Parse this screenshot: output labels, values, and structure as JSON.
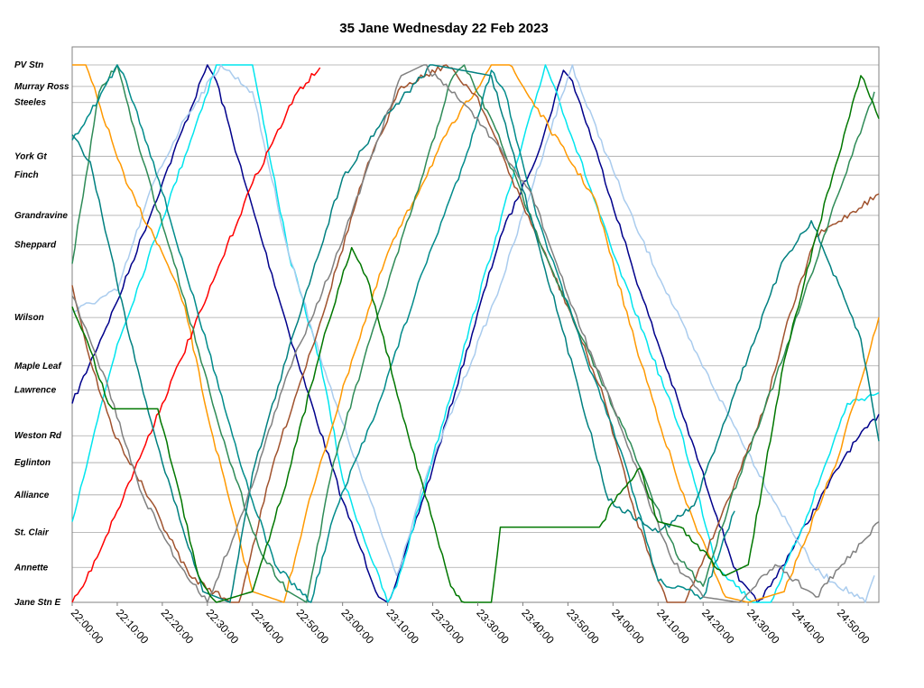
{
  "chart_data": {
    "type": "line",
    "title": "35 Jane Wednesday 22 Feb 2023",
    "x_ticks": [
      "22:00:00",
      "22:10:00",
      "22:20:00",
      "22:30:00",
      "22:40:00",
      "22:50:00",
      "23:00:00",
      "23:10:00",
      "23:20:00",
      "23:30:00",
      "23:40:00",
      "23:50:00",
      "24:00:00",
      "24:10:00",
      "24:20:00",
      "24:30:00",
      "24:40:00",
      "24:50:00"
    ],
    "xlim_minutes": [
      0,
      179
    ],
    "stops": [
      {
        "name": "PV Stn",
        "pos": 0
      },
      {
        "name": "Murray Ross",
        "pos": 0.4
      },
      {
        "name": "Steeles",
        "pos": 0.7
      },
      {
        "name": "York Gt",
        "pos": 1.7
      },
      {
        "name": "Finch",
        "pos": 2.05
      },
      {
        "name": "Grandravine",
        "pos": 2.8
      },
      {
        "name": "Sheppard",
        "pos": 3.35
      },
      {
        "name": "Wilson",
        "pos": 4.7
      },
      {
        "name": "Maple Leaf",
        "pos": 5.6
      },
      {
        "name": "Lawrence",
        "pos": 6.05
      },
      {
        "name": "Weston Rd",
        "pos": 6.9
      },
      {
        "name": "Eglinton",
        "pos": 7.4
      },
      {
        "name": "Alliance",
        "pos": 8.0
      },
      {
        "name": "St. Clair",
        "pos": 8.7
      },
      {
        "name": "Annette",
        "pos": 9.35
      },
      {
        "name": "Jane Stn E",
        "pos": 10.0
      }
    ],
    "grid": true,
    "legend": "none",
    "series": [
      {
        "color": "#00008b",
        "points": [
          [
            0,
            6.3
          ],
          [
            10,
            4.4
          ],
          [
            20,
            2.2
          ],
          [
            30,
            0
          ],
          [
            32,
            0.3
          ],
          [
            38,
            2.1
          ],
          [
            50,
            5.5
          ],
          [
            60,
            8.1
          ],
          [
            64,
            9.0
          ],
          [
            68,
            9.9
          ],
          [
            70,
            10
          ],
          [
            72,
            9.6
          ],
          [
            80,
            7.5
          ],
          [
            95,
            3.2
          ],
          [
            104,
            1.5
          ],
          [
            109,
            0.1
          ],
          [
            111,
            0.3
          ],
          [
            117,
            1.8
          ],
          [
            126,
            4.2
          ],
          [
            135,
            6.4
          ],
          [
            148,
            9.6
          ],
          [
            152,
            10
          ],
          [
            155,
            9.7
          ],
          [
            172,
            7.2
          ],
          [
            179,
            6.5
          ]
        ]
      },
      {
        "color": "#00e5ee",
        "points": [
          [
            0,
            8.5
          ],
          [
            5,
            6.8
          ],
          [
            10,
            5.2
          ],
          [
            25,
            1.7
          ],
          [
            32,
            0
          ],
          [
            40,
            0
          ],
          [
            48,
            3.5
          ],
          [
            55,
            5.5
          ],
          [
            60,
            7.7
          ],
          [
            70,
            10
          ],
          [
            72,
            9.7
          ],
          [
            80,
            7.3
          ],
          [
            94,
            3.2
          ],
          [
            105,
            0
          ],
          [
            107,
            0.4
          ],
          [
            120,
            3.5
          ],
          [
            135,
            6.8
          ],
          [
            143,
            9.3
          ],
          [
            151,
            10
          ],
          [
            155,
            10
          ],
          [
            163,
            8.4
          ],
          [
            172,
            6.3
          ],
          [
            179,
            6.1
          ]
        ]
      },
      {
        "color": "#aaccee",
        "points": [
          [
            0,
            4.6
          ],
          [
            10,
            4.2
          ],
          [
            18,
            2.2
          ],
          [
            25,
            1.0
          ],
          [
            33,
            0
          ],
          [
            40,
            0.5
          ],
          [
            48,
            3.5
          ],
          [
            58,
            6.2
          ],
          [
            72,
            9.5
          ],
          [
            78,
            7.8
          ],
          [
            95,
            4.1
          ],
          [
            105,
            1.5
          ],
          [
            111,
            0
          ],
          [
            113,
            0.5
          ],
          [
            125,
            3.0
          ],
          [
            138,
            5.3
          ],
          [
            155,
            8.0
          ],
          [
            165,
            9.4
          ],
          [
            176,
            10
          ],
          [
            178,
            9.5
          ]
        ]
      },
      {
        "color": "#ff9900",
        "points": [
          [
            0,
            0
          ],
          [
            3,
            0
          ],
          [
            12,
            2.2
          ],
          [
            20,
            3.5
          ],
          [
            25,
            4.5
          ],
          [
            30,
            6.5
          ],
          [
            40,
            9.8
          ],
          [
            47,
            10
          ],
          [
            52,
            8.3
          ],
          [
            62,
            5.5
          ],
          [
            70,
            3.5
          ],
          [
            83,
            1.3
          ],
          [
            93,
            0
          ],
          [
            97,
            0
          ],
          [
            116,
            2.5
          ],
          [
            125,
            5.2
          ],
          [
            135,
            7.9
          ],
          [
            145,
            9.9
          ],
          [
            150,
            10
          ],
          [
            158,
            9.8
          ],
          [
            170,
            7.3
          ],
          [
            179,
            4.7
          ]
        ]
      },
      {
        "color": "#a0522d",
        "points": [
          [
            0,
            4.1
          ],
          [
            4,
            5.5
          ],
          [
            9,
            6.8
          ],
          [
            16,
            7.9
          ],
          [
            26,
            9.5
          ],
          [
            35,
            10
          ],
          [
            37,
            10
          ],
          [
            45,
            7.3
          ],
          [
            55,
            4.8
          ],
          [
            65,
            2.0
          ],
          [
            73,
            0.4
          ],
          [
            83,
            0
          ],
          [
            90,
            0.6
          ],
          [
            100,
            2.6
          ],
          [
            110,
            4.5
          ],
          [
            118,
            6.2
          ],
          [
            125,
            8.4
          ],
          [
            132,
            10
          ],
          [
            136,
            10
          ],
          [
            144,
            8.4
          ],
          [
            154,
            6.3
          ],
          [
            158,
            5.0
          ],
          [
            165,
            3.2
          ],
          [
            179,
            2.4
          ]
        ]
      },
      {
        "color": "#ff0000",
        "points": [
          [
            0,
            10
          ],
          [
            3,
            9.6
          ],
          [
            10,
            8.3
          ],
          [
            20,
            6.3
          ],
          [
            30,
            4.3
          ],
          [
            40,
            2.2
          ],
          [
            50,
            0.5
          ],
          [
            55,
            0.05
          ]
        ]
      },
      {
        "color": "#2e8b57",
        "points": [
          [
            0,
            3.7
          ],
          [
            6,
            0.5
          ],
          [
            10,
            0
          ],
          [
            15,
            1.6
          ],
          [
            22,
            3.5
          ],
          [
            28,
            5.3
          ],
          [
            35,
            7.4
          ],
          [
            42,
            9.1
          ],
          [
            48,
            9.8
          ],
          [
            52,
            10
          ],
          [
            58,
            7.4
          ],
          [
            68,
            4.6
          ],
          [
            78,
            2.0
          ],
          [
            84,
            0.3
          ],
          [
            87,
            0
          ],
          [
            94,
            1.2
          ],
          [
            103,
            3.1
          ],
          [
            112,
            4.9
          ],
          [
            122,
            6.7
          ],
          [
            134,
            9.1
          ],
          [
            140,
            9.7
          ],
          [
            146,
            8.1
          ],
          [
            158,
            5.4
          ],
          [
            170,
            2.4
          ],
          [
            178,
            0.5
          ]
        ]
      },
      {
        "color": "#008080",
        "points": [
          [
            0,
            1.3
          ],
          [
            4,
            1.8
          ],
          [
            8,
            3.3
          ],
          [
            14,
            5.5
          ],
          [
            20,
            7.4
          ],
          [
            29,
            9.8
          ],
          [
            35,
            10
          ],
          [
            40,
            7.6
          ],
          [
            52,
            4.2
          ],
          [
            60,
            2.1
          ],
          [
            70,
            0.9
          ],
          [
            80,
            0
          ],
          [
            93,
            0.2
          ],
          [
            103,
            3.2
          ],
          [
            112,
            5.9
          ],
          [
            119,
            8.1
          ],
          [
            130,
            8.7
          ],
          [
            138,
            8.2
          ],
          [
            147,
            6.1
          ],
          [
            158,
            3.6
          ],
          [
            164,
            2.9
          ],
          [
            175,
            5.1
          ],
          [
            179,
            7.0
          ]
        ]
      },
      {
        "color": "#008b8b",
        "points": [
          [
            0,
            1.4
          ],
          [
            4,
            0.9
          ],
          [
            10,
            0
          ],
          [
            12,
            0.3
          ],
          [
            18,
            1.8
          ],
          [
            25,
            3.8
          ],
          [
            32,
            5.8
          ],
          [
            38,
            7.6
          ],
          [
            45,
            9.3
          ],
          [
            53,
            10
          ],
          [
            58,
            8.4
          ],
          [
            68,
            6.3
          ],
          [
            78,
            3.8
          ],
          [
            87,
            1.8
          ],
          [
            93,
            0.1
          ],
          [
            96,
            0.5
          ],
          [
            103,
            2.8
          ],
          [
            113,
            5.2
          ],
          [
            123,
            7.5
          ],
          [
            130,
            9.6
          ],
          [
            140,
            9.9
          ],
          [
            147,
            8.3
          ]
        ]
      },
      {
        "color": "#808080",
        "points": [
          [
            0,
            4.3
          ],
          [
            8,
            6.0
          ],
          [
            15,
            7.9
          ],
          [
            23,
            9.2
          ],
          [
            30,
            10
          ],
          [
            38,
            8.3
          ],
          [
            48,
            5.7
          ],
          [
            58,
            3.7
          ],
          [
            67,
            1.6
          ],
          [
            73,
            0.2
          ],
          [
            78,
            0
          ],
          [
            88,
            0.8
          ],
          [
            102,
            2.4
          ],
          [
            110,
            4.3
          ],
          [
            122,
            6.8
          ],
          [
            133,
            9.2
          ],
          [
            140,
            9.9
          ],
          [
            148,
            10
          ],
          [
            156,
            9.3
          ],
          [
            165,
            9.9
          ],
          [
            179,
            8.5
          ]
        ]
      },
      {
        "color": "#007700",
        "points": [
          [
            0,
            4.5
          ],
          [
            4,
            5.3
          ],
          [
            8,
            6.3
          ],
          [
            9,
            6.4
          ],
          [
            19,
            6.4
          ],
          [
            23,
            7.7
          ],
          [
            28,
            9.5
          ],
          [
            32,
            10
          ],
          [
            40,
            9.8
          ],
          [
            48,
            7.6
          ],
          [
            56,
            5.0
          ],
          [
            62,
            3.4
          ],
          [
            66,
            4.1
          ],
          [
            74,
            6.7
          ],
          [
            84,
            9.7
          ],
          [
            87,
            10
          ],
          [
            93,
            10
          ],
          [
            95,
            8.6
          ],
          [
            117,
            8.6
          ],
          [
            121,
            8.0
          ],
          [
            126,
            7.5
          ],
          [
            130,
            8.5
          ],
          [
            135,
            8.6
          ],
          [
            145,
            9.5
          ],
          [
            150,
            9.3
          ],
          [
            158,
            5.5
          ],
          [
            165,
            3.2
          ],
          [
            175,
            0.2
          ],
          [
            179,
            1.0
          ]
        ]
      }
    ]
  }
}
